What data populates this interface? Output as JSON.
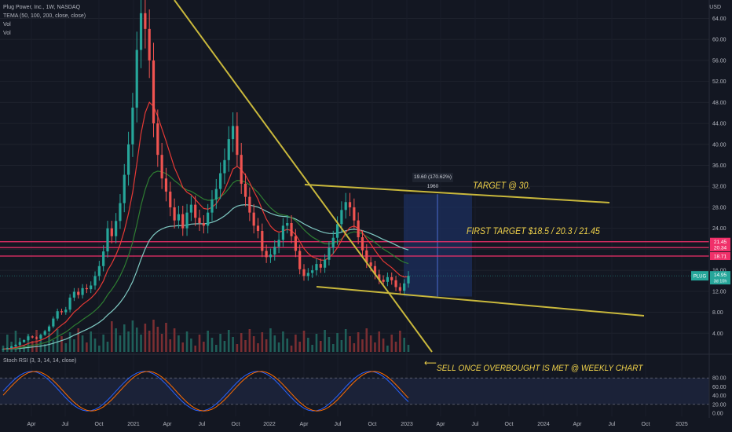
{
  "legend": {
    "title": "Plug Power, Inc., 1W, NASDAQ",
    "tema": "TEMA (50, 100, 200, close, close)",
    "vol1": "Vol",
    "vol2": "Vol"
  },
  "rsi_legend": "Stoch RSI (3, 3, 14, 14, close)",
  "axis_currency": "USD",
  "annotations": {
    "target": "TARGET  @ 30.",
    "first_target": "FIRST TARGET $18.5 / 20.3 / 21.45",
    "sell": "SELL ONCE OVERBOUGHT IS MET @ WEEKLY CHART",
    "arrow": "⟵",
    "measure": "19.60 (170.62%) 1960"
  },
  "colors": {
    "background": "#131722",
    "up": "#26a69a",
    "down": "#ef5350",
    "trendline": "#c9b83c",
    "hline": "#f0306a",
    "tema50": "#e53935",
    "tema100": "#2e7d32",
    "tema200": "#80cbc4",
    "target_box": "#1c2f5e",
    "rsi_k": "#2962ff",
    "rsi_d": "#ff6d00"
  },
  "chart_data": {
    "type": "candlestick",
    "symbol": "PLUG",
    "price_axis": {
      "ticks": [
        4.0,
        8.0,
        12.0,
        16.0,
        20.0,
        24.0,
        28.0,
        32.0,
        36.0,
        40.0,
        44.0,
        48.0,
        52.0,
        56.0,
        60.0,
        64.0
      ]
    },
    "time_axis": {
      "labels": [
        "Apr",
        "Jul",
        "Oct",
        "2021",
        "Apr",
        "Jul",
        "Oct",
        "2022",
        "Apr",
        "Jul",
        "Oct",
        "2023",
        "Apr",
        "Jul",
        "Oct",
        "2024",
        "Apr",
        "Jul",
        "Oct",
        "2025"
      ]
    },
    "last_price": {
      "label": "PLUG",
      "value": "14.95",
      "sub": "3d 10h"
    },
    "horizontal_levels": [
      21.45,
      20.34,
      18.71
    ],
    "weekly_close_approx": [
      1.0,
      1.2,
      1.5,
      1.8,
      2.3,
      2.7,
      3.4,
      3.2,
      3.0,
      3.7,
      4.4,
      5.3,
      6.8,
      8.2,
      8.0,
      8.5,
      10.8,
      11.9,
      11.3,
      12.6,
      12.4,
      13.1,
      14.9,
      16.8,
      19.6,
      24.0,
      22.5,
      25.4,
      28.8,
      34.2,
      40.0,
      47.0,
      58.0,
      65.0,
      62.0,
      56.0,
      44.0,
      38.0,
      33.5,
      31.0,
      28.0,
      25.5,
      26.7,
      24.0,
      27.0,
      28.5,
      26.0,
      25.0,
      24.5,
      27.0,
      29.5,
      31.5,
      34.5,
      37.0,
      41.0,
      43.5,
      38.0,
      32.5,
      30.0,
      27.0,
      24.5,
      23.5,
      19.7,
      18.5,
      19.0,
      20.5,
      21.8,
      24.5,
      25.0,
      22.5,
      19.7,
      16.2,
      14.9,
      15.5,
      16.0,
      17.2,
      16.5,
      18.0,
      20.3,
      22.2,
      24.8,
      27.5,
      29.0,
      28.0,
      25.5,
      22.3,
      19.8,
      17.5,
      16.8,
      15.2,
      14.2,
      13.8,
      14.7,
      14.1,
      12.8,
      12.1,
      13.5,
      14.95
    ],
    "stoch_rsi": {
      "levels": [
        0.0,
        20.0,
        40.0,
        60.0,
        80.0
      ],
      "overbought": 80,
      "oversold": 20
    }
  }
}
